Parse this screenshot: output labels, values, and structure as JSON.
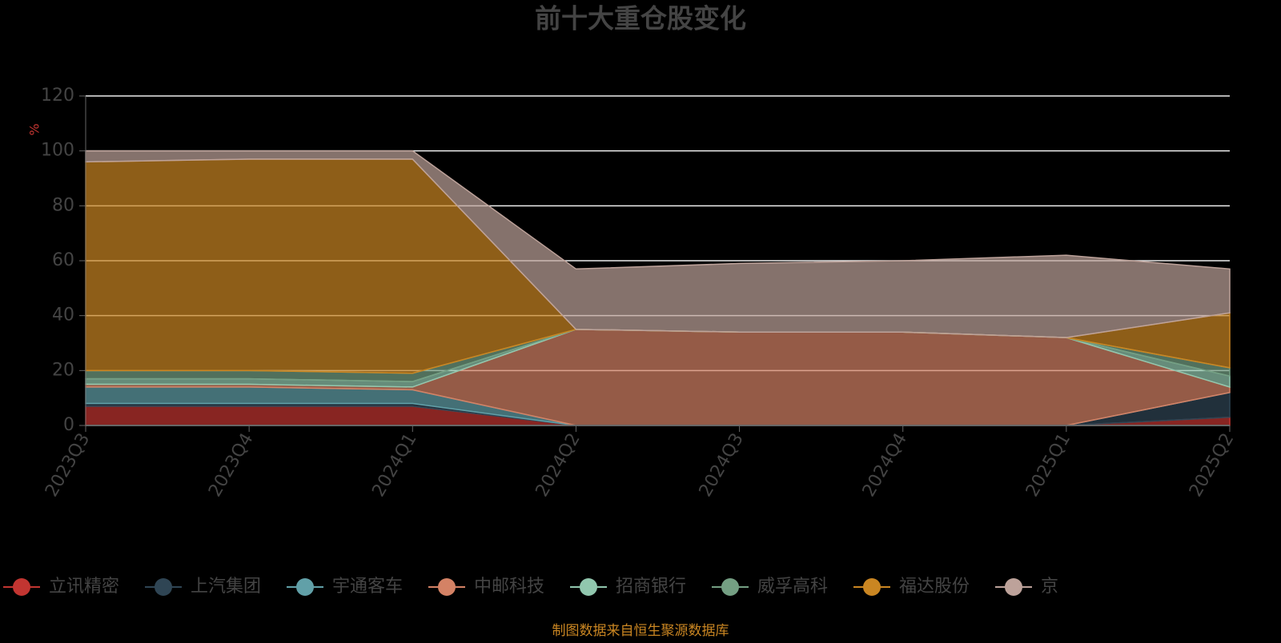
{
  "chart_data": {
    "type": "stacked-area",
    "title": "前十大重仓股变化",
    "y_label": "%",
    "source": "制图数据来自恒生聚源数据库",
    "categories": [
      "2023Q3",
      "2023Q4",
      "2024Q1",
      "2024Q2",
      "2024Q3",
      "2024Q4",
      "2025Q1",
      "2025Q2"
    ],
    "series": [
      {
        "name": "立讯精密",
        "color": "#c23531",
        "values": [
          7,
          7,
          7,
          0,
          0,
          0,
          0,
          3
        ]
      },
      {
        "name": "上汽集团",
        "color": "#2f4554",
        "values": [
          1,
          1,
          1,
          0,
          0,
          0,
          0,
          9
        ]
      },
      {
        "name": "宇通客车",
        "color": "#61a0a8",
        "values": [
          6,
          6,
          5,
          0,
          0,
          0,
          0,
          0
        ]
      },
      {
        "name": "中邮科技",
        "color": "#d48265",
        "values": [
          1,
          1,
          1,
          35,
          34,
          34,
          32,
          2
        ]
      },
      {
        "name": "招商银行",
        "color": "#91c7ae",
        "values": [
          2,
          2,
          2,
          0,
          0,
          0,
          0,
          4
        ]
      },
      {
        "name": "威孚高科",
        "color": "#749f83",
        "values": [
          3,
          3,
          3,
          0,
          0,
          0,
          0,
          3
        ]
      },
      {
        "name": "福达股份",
        "color": "#ca8622",
        "values": [
          76,
          77,
          78,
          0,
          0,
          0,
          0,
          20
        ]
      },
      {
        "name": "京",
        "color": "#bda29a",
        "values": [
          4,
          3,
          3,
          22,
          25,
          26,
          30,
          16
        ]
      }
    ],
    "ylim": [
      0,
      120
    ],
    "yticks": [
      0,
      20,
      40,
      60,
      80,
      100,
      120
    ],
    "grid": true,
    "legend": "bottom"
  }
}
